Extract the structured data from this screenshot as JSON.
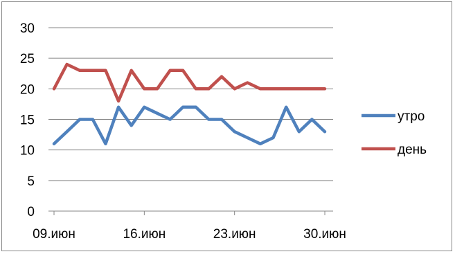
{
  "chart_data": {
    "type": "line",
    "title": "",
    "xlabel": "",
    "ylabel": "",
    "ylim": [
      0,
      30
    ],
    "yticks": [
      "0",
      "5",
      "10",
      "15",
      "20",
      "25",
      "30"
    ],
    "y_tick_values": [
      0,
      5,
      10,
      15,
      20,
      25,
      30
    ],
    "xticks": [
      "09.июн",
      "16.июн",
      "23.июн",
      "30.июн"
    ],
    "x": [
      "09.июн",
      "10.июн",
      "11.июн",
      "12.июн",
      "13.июн",
      "14.июн",
      "15.июн",
      "16.июн",
      "17.июн",
      "18.июн",
      "19.июн",
      "20.июн",
      "21.июн",
      "22.июн",
      "23.июн",
      "24.июн",
      "25.июн",
      "26.июн",
      "27.июн",
      "28.июн",
      "29.июн",
      "30.июн",
      "01.июл"
    ],
    "grid": "horizontal",
    "legend_position": "right",
    "series": [
      {
        "name": "утро",
        "color": "#4f81bd",
        "values": [
          11,
          13,
          15,
          15,
          11,
          17,
          14,
          17,
          16,
          15,
          17,
          17,
          15,
          15,
          13,
          12,
          11,
          12,
          17,
          13,
          15,
          13,
          null
        ]
      },
      {
        "name": "день",
        "color": "#c0504d",
        "values": [
          20,
          24,
          23,
          23,
          23,
          18,
          23,
          20,
          20,
          23,
          23,
          20,
          20,
          22,
          20,
          21,
          20,
          20,
          20,
          20,
          20,
          20,
          null
        ]
      }
    ]
  }
}
